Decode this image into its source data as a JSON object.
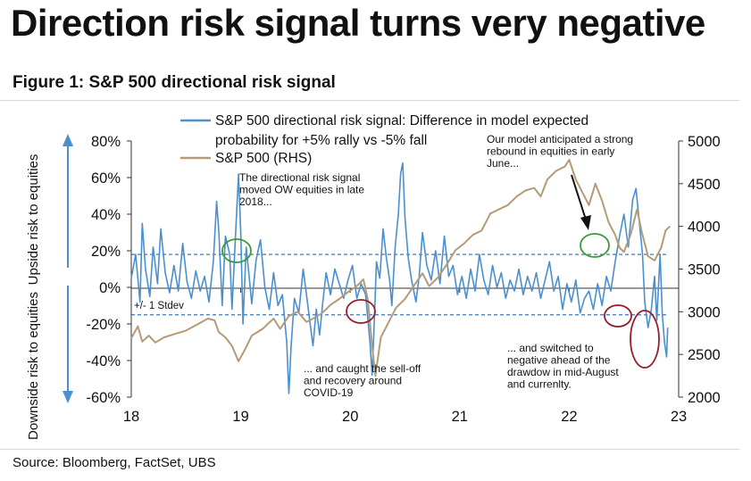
{
  "headline": "Direction risk signal turns very negative",
  "figure_title": "Figure 1: S&P 500 directional risk signal",
  "source": "Source: Bloomberg, FactSet, UBS",
  "colors": {
    "signal": "#4a8fcf",
    "spx": "#b59a78",
    "ellipse_green": "#3a9a3a",
    "ellipse_red": "#9b1c2c",
    "band": "#3c78b8",
    "arrow": "#3c78b8"
  },
  "left_axis_labels": {
    "upside": "Upside risk to equities",
    "downside": "Downside risk to equities"
  },
  "band_label": "+/- 1 Stdev",
  "annotations": {
    "a1": [
      "The directional risk signal",
      "moved OW equities in late",
      "2018..."
    ],
    "a2": [
      "... and caught the sell-off",
      "and recovery around",
      "COVID-19"
    ],
    "a3": [
      "Our model anticipated a strong",
      "rebound in equities in early",
      "June..."
    ],
    "a4": [
      "... and switched to",
      "negative ahead of the",
      "drawdow in mid-August",
      "and currenlty."
    ]
  },
  "chart_data": {
    "type": "line",
    "x_ticks": [
      "18",
      "19",
      "20",
      "21",
      "22",
      "23"
    ],
    "y_left_ticks": [
      "80%",
      "60%",
      "40%",
      "20%",
      "0%",
      "-20%",
      "-40%",
      "-60%"
    ],
    "y_right_ticks": [
      "5000",
      "4500",
      "4000",
      "3500",
      "3000",
      "2500",
      "2000"
    ],
    "ylim_left": [
      -60,
      80
    ],
    "ylim_right": [
      2000,
      5000
    ],
    "xlim": [
      2018.0,
      2023.0
    ],
    "std_band": [
      18,
      -15
    ],
    "legend": [
      "S&P 500 directional risk signal: Difference in model expected probability for +5% rally vs -5% fall",
      "S&P 500 (RHS)"
    ],
    "series": [
      {
        "name": "S&P 500 directional risk signal: Difference in model expected probability for +5% rally vs -5% fall",
        "axis": "left",
        "points": [
          [
            2018.0,
            5
          ],
          [
            2018.04,
            18
          ],
          [
            2018.08,
            -8
          ],
          [
            2018.1,
            35
          ],
          [
            2018.13,
            10
          ],
          [
            2018.17,
            -5
          ],
          [
            2018.2,
            22
          ],
          [
            2018.24,
            2
          ],
          [
            2018.27,
            32
          ],
          [
            2018.31,
            8
          ],
          [
            2018.35,
            -3
          ],
          [
            2018.39,
            12
          ],
          [
            2018.43,
            -2
          ],
          [
            2018.47,
            24
          ],
          [
            2018.51,
            3
          ],
          [
            2018.55,
            -6
          ],
          [
            2018.59,
            9
          ],
          [
            2018.63,
            -2
          ],
          [
            2018.67,
            6
          ],
          [
            2018.71,
            -8
          ],
          [
            2018.75,
            14
          ],
          [
            2018.78,
            47
          ],
          [
            2018.8,
            30
          ],
          [
            2018.83,
            -10
          ],
          [
            2018.86,
            28
          ],
          [
            2018.9,
            18
          ],
          [
            2018.92,
            -12
          ],
          [
            2018.95,
            26
          ],
          [
            2018.98,
            62
          ],
          [
            2019.0,
            30
          ],
          [
            2019.02,
            -20
          ],
          [
            2019.05,
            22
          ],
          [
            2019.08,
            4
          ],
          [
            2019.1,
            -9
          ],
          [
            2019.14,
            15
          ],
          [
            2019.18,
            26
          ],
          [
            2019.22,
            0
          ],
          [
            2019.26,
            -12
          ],
          [
            2019.3,
            8
          ],
          [
            2019.34,
            -10
          ],
          [
            2019.38,
            -4
          ],
          [
            2019.42,
            -30
          ],
          [
            2019.44,
            -58
          ],
          [
            2019.46,
            -32
          ],
          [
            2019.49,
            -6
          ],
          [
            2019.53,
            -14
          ],
          [
            2019.57,
            10
          ],
          [
            2019.6,
            -4
          ],
          [
            2019.63,
            -18
          ],
          [
            2019.66,
            -32
          ],
          [
            2019.69,
            -12
          ],
          [
            2019.72,
            -26
          ],
          [
            2019.75,
            -8
          ],
          [
            2019.78,
            8
          ],
          [
            2019.82,
            -4
          ],
          [
            2019.86,
            10
          ],
          [
            2019.9,
            2
          ],
          [
            2019.94,
            -6
          ],
          [
            2019.98,
            4
          ],
          [
            2020.02,
            12
          ],
          [
            2020.06,
            -6
          ],
          [
            2020.1,
            2
          ],
          [
            2020.14,
            -4
          ],
          [
            2020.18,
            -30
          ],
          [
            2020.2,
            -48
          ],
          [
            2020.22,
            -18
          ],
          [
            2020.24,
            14
          ],
          [
            2020.27,
            5
          ],
          [
            2020.3,
            32
          ],
          [
            2020.33,
            16
          ],
          [
            2020.36,
            4
          ],
          [
            2020.38,
            -10
          ],
          [
            2020.41,
            22
          ],
          [
            2020.44,
            40
          ],
          [
            2020.46,
            62
          ],
          [
            2020.48,
            68
          ],
          [
            2020.5,
            38
          ],
          [
            2020.53,
            16
          ],
          [
            2020.56,
            4
          ],
          [
            2020.6,
            -8
          ],
          [
            2020.63,
            6
          ],
          [
            2020.66,
            30
          ],
          [
            2020.7,
            12
          ],
          [
            2020.74,
            4
          ],
          [
            2020.78,
            20
          ],
          [
            2020.82,
            2
          ],
          [
            2020.86,
            28
          ],
          [
            2020.9,
            6
          ],
          [
            2020.94,
            12
          ],
          [
            2020.98,
            -4
          ],
          [
            2021.02,
            6
          ],
          [
            2021.06,
            -6
          ],
          [
            2021.1,
            10
          ],
          [
            2021.14,
            -2
          ],
          [
            2021.18,
            18
          ],
          [
            2021.22,
            4
          ],
          [
            2021.26,
            -4
          ],
          [
            2021.3,
            12
          ],
          [
            2021.34,
            0
          ],
          [
            2021.38,
            8
          ],
          [
            2021.42,
            -6
          ],
          [
            2021.46,
            4
          ],
          [
            2021.5,
            -2
          ],
          [
            2021.54,
            10
          ],
          [
            2021.58,
            -4
          ],
          [
            2021.62,
            6
          ],
          [
            2021.66,
            -2
          ],
          [
            2021.7,
            8
          ],
          [
            2021.74,
            -6
          ],
          [
            2021.78,
            4
          ],
          [
            2021.82,
            14
          ],
          [
            2021.86,
            -2
          ],
          [
            2021.9,
            6
          ],
          [
            2021.94,
            -12
          ],
          [
            2021.98,
            2
          ],
          [
            2022.02,
            -8
          ],
          [
            2022.06,
            4
          ],
          [
            2022.1,
            -14
          ],
          [
            2022.14,
            -6
          ],
          [
            2022.18,
            -2
          ],
          [
            2022.22,
            -12
          ],
          [
            2022.26,
            2
          ],
          [
            2022.3,
            -10
          ],
          [
            2022.34,
            6
          ],
          [
            2022.38,
            -2
          ],
          [
            2022.42,
            14
          ],
          [
            2022.46,
            28
          ],
          [
            2022.5,
            40
          ],
          [
            2022.54,
            22
          ],
          [
            2022.58,
            48
          ],
          [
            2022.61,
            54
          ],
          [
            2022.64,
            36
          ],
          [
            2022.67,
            18
          ],
          [
            2022.69,
            -8
          ],
          [
            2022.72,
            -22
          ],
          [
            2022.75,
            -12
          ],
          [
            2022.78,
            6
          ],
          [
            2022.8,
            -18
          ],
          [
            2022.83,
            18
          ],
          [
            2022.85,
            -14
          ],
          [
            2022.87,
            -30
          ],
          [
            2022.89,
            -38
          ],
          [
            2022.9,
            -22
          ]
        ]
      },
      {
        "name": "S&P 500 (RHS)",
        "axis": "right",
        "points": [
          [
            2018.0,
            2690
          ],
          [
            2018.06,
            2830
          ],
          [
            2018.1,
            2650
          ],
          [
            2018.16,
            2720
          ],
          [
            2018.22,
            2640
          ],
          [
            2018.3,
            2700
          ],
          [
            2018.4,
            2740
          ],
          [
            2018.5,
            2780
          ],
          [
            2018.6,
            2850
          ],
          [
            2018.7,
            2920
          ],
          [
            2018.76,
            2900
          ],
          [
            2018.8,
            2760
          ],
          [
            2018.86,
            2700
          ],
          [
            2018.92,
            2600
          ],
          [
            2018.98,
            2420
          ],
          [
            2019.04,
            2560
          ],
          [
            2019.1,
            2720
          ],
          [
            2019.2,
            2800
          ],
          [
            2019.3,
            2920
          ],
          [
            2019.36,
            2800
          ],
          [
            2019.44,
            2950
          ],
          [
            2019.52,
            3000
          ],
          [
            2019.6,
            2880
          ],
          [
            2019.66,
            2920
          ],
          [
            2019.74,
            2980
          ],
          [
            2019.82,
            3080
          ],
          [
            2019.9,
            3150
          ],
          [
            2019.98,
            3230
          ],
          [
            2020.06,
            3300
          ],
          [
            2020.12,
            3380
          ],
          [
            2020.16,
            3150
          ],
          [
            2020.2,
            2600
          ],
          [
            2020.23,
            2250
          ],
          [
            2020.28,
            2700
          ],
          [
            2020.34,
            2850
          ],
          [
            2020.42,
            3050
          ],
          [
            2020.5,
            3150
          ],
          [
            2020.58,
            3300
          ],
          [
            2020.66,
            3450
          ],
          [
            2020.72,
            3300
          ],
          [
            2020.8,
            3400
          ],
          [
            2020.88,
            3550
          ],
          [
            2020.96,
            3720
          ],
          [
            2021.04,
            3800
          ],
          [
            2021.12,
            3900
          ],
          [
            2021.2,
            3950
          ],
          [
            2021.28,
            4150
          ],
          [
            2021.36,
            4200
          ],
          [
            2021.44,
            4250
          ],
          [
            2021.52,
            4350
          ],
          [
            2021.6,
            4420
          ],
          [
            2021.68,
            4450
          ],
          [
            2021.74,
            4350
          ],
          [
            2021.8,
            4550
          ],
          [
            2021.88,
            4650
          ],
          [
            2021.96,
            4700
          ],
          [
            2022.0,
            4780
          ],
          [
            2022.06,
            4550
          ],
          [
            2022.12,
            4400
          ],
          [
            2022.18,
            4250
          ],
          [
            2022.24,
            4500
          ],
          [
            2022.3,
            4300
          ],
          [
            2022.36,
            4050
          ],
          [
            2022.42,
            3900
          ],
          [
            2022.46,
            3750
          ],
          [
            2022.5,
            3700
          ],
          [
            2022.56,
            3900
          ],
          [
            2022.62,
            4200
          ],
          [
            2022.66,
            3950
          ],
          [
            2022.72,
            3650
          ],
          [
            2022.78,
            3600
          ],
          [
            2022.84,
            3750
          ],
          [
            2022.88,
            3950
          ],
          [
            2022.92,
            4000
          ]
        ]
      }
    ]
  }
}
